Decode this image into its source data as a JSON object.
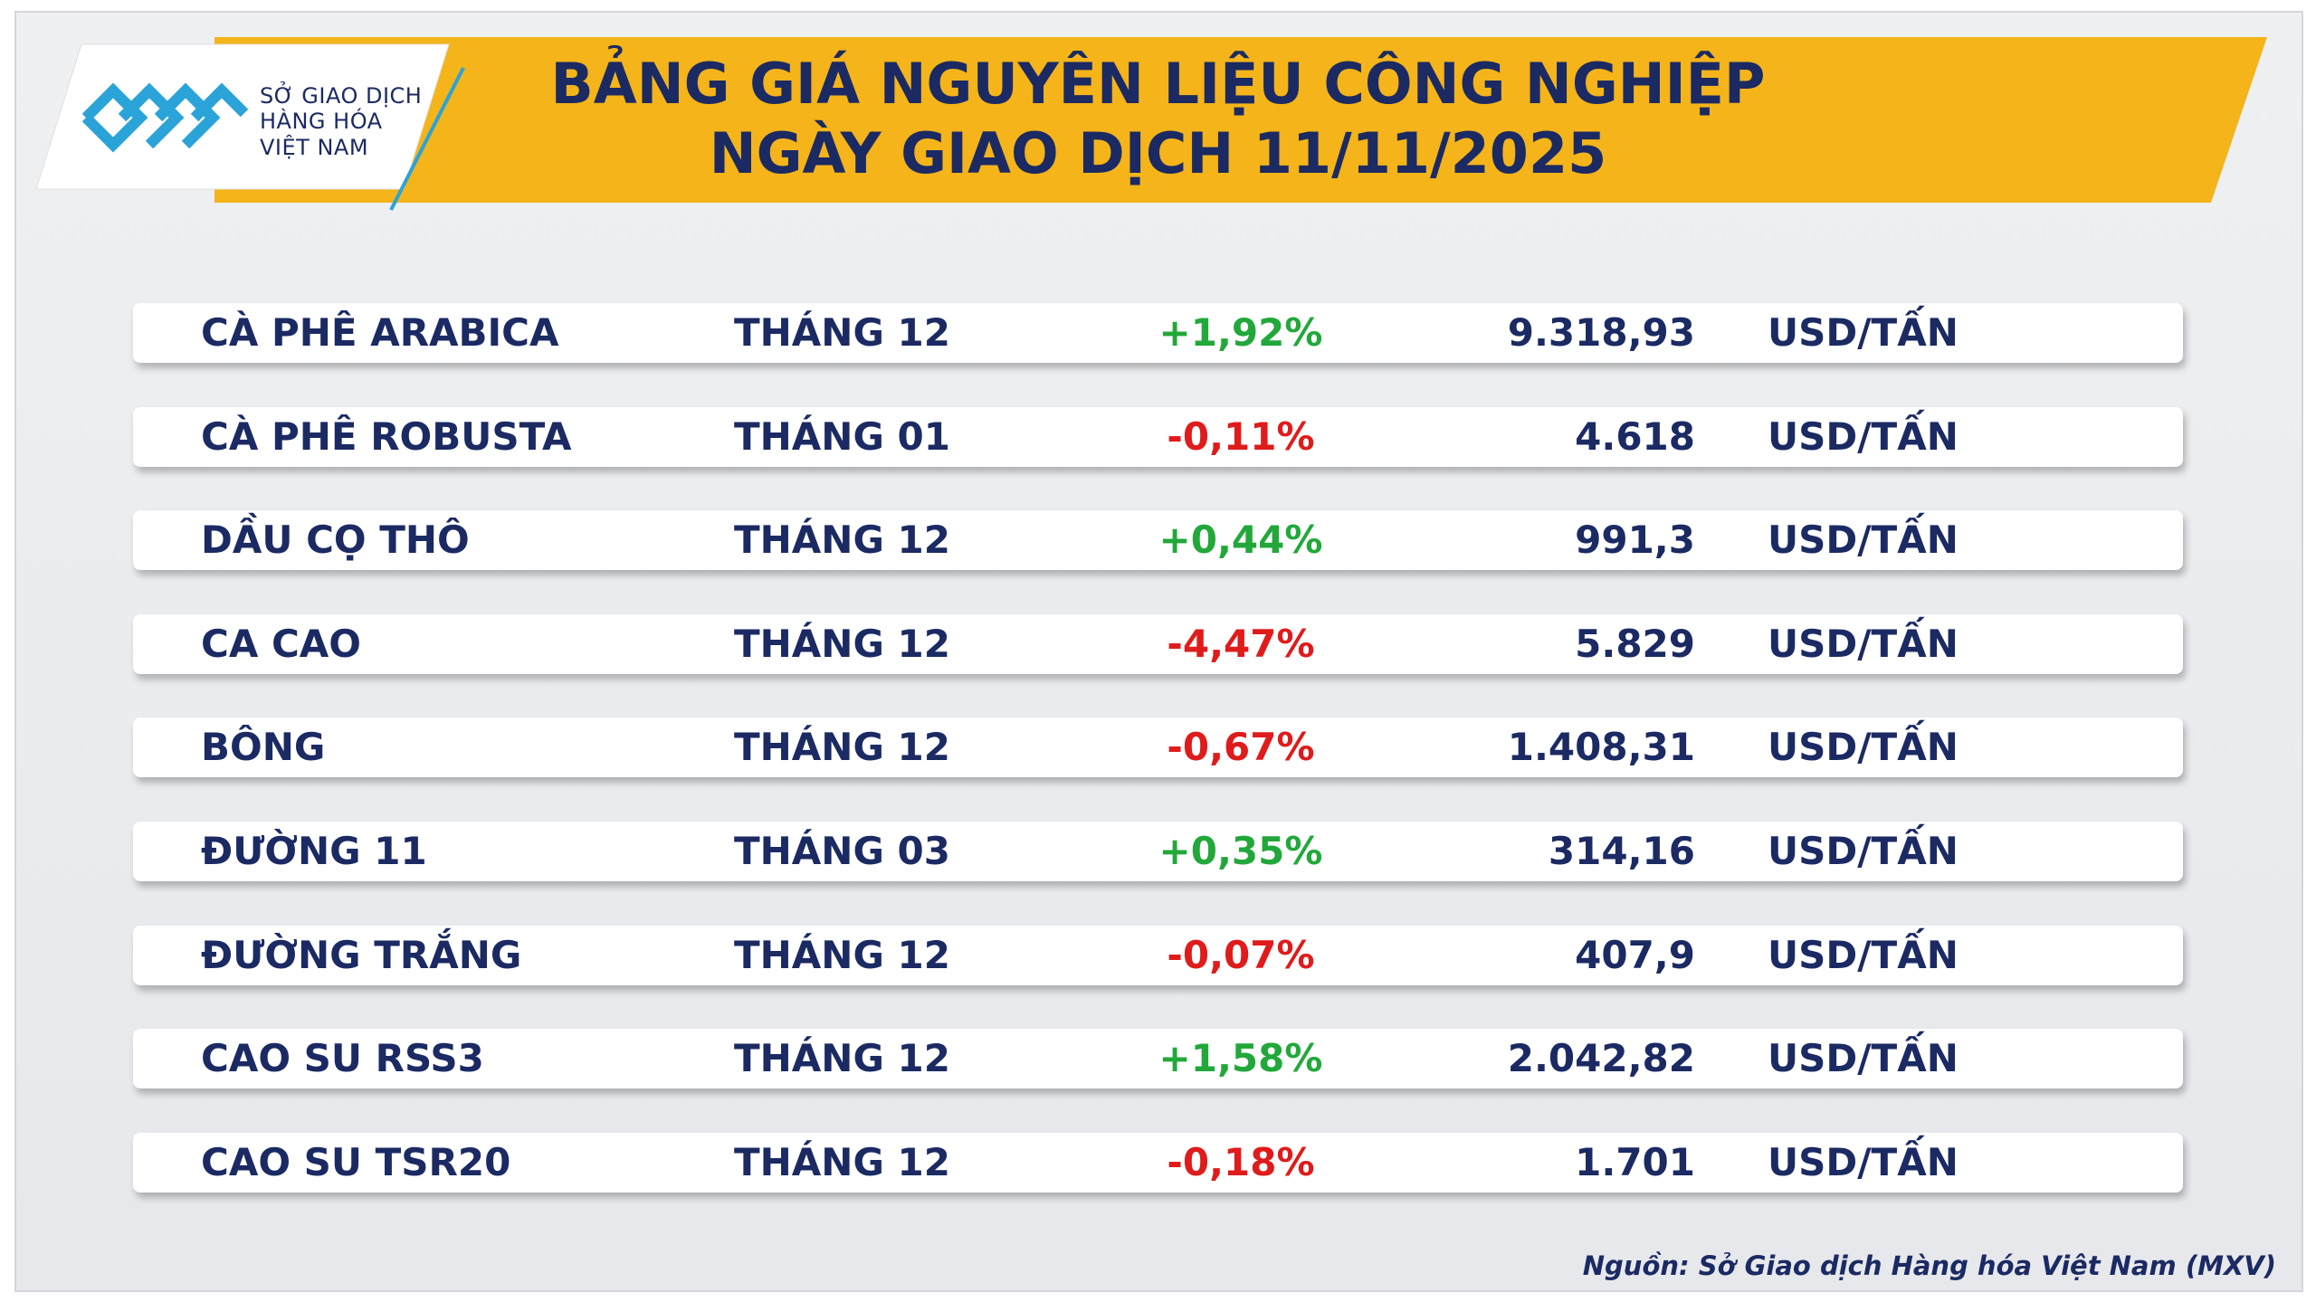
{
  "header": {
    "logo": {
      "lines": [
        "SỞ GIAO DỊCH",
        "HÀNG HÓA",
        "VIỆT NAM"
      ]
    },
    "title": [
      "BẢNG GIÁ NGUYÊN LIỆU CÔNG NGHIỆP",
      "NGÀY GIAO DỊCH 11/11/2025"
    ]
  },
  "table": {
    "rows": [
      [
        "CÀ PHÊ ARABICA",
        "THÁNG 12",
        "+1,92%",
        "9.318,93",
        "USD/TẤN"
      ],
      [
        "CÀ PHÊ ROBUSTA",
        "THÁNG 01",
        "-0,11%",
        "4.618",
        "USD/TẤN"
      ],
      [
        "DẦU CỌ THÔ",
        "THÁNG 12",
        "+0,44%",
        "991,3",
        "USD/TẤN"
      ],
      [
        "CA CAO",
        "THÁNG 12",
        "-4,47%",
        "5.829",
        "USD/TẤN"
      ],
      [
        "BÔNG",
        "THÁNG 12",
        "-0,67%",
        "1.408,31",
        "USD/TẤN"
      ],
      [
        "ĐƯỜNG 11",
        "THÁNG 03",
        "+0,35%",
        "314,16",
        "USD/TẤN"
      ],
      [
        "ĐƯỜNG TRẮNG",
        "THÁNG 12",
        "-0,07%",
        "407,9",
        "USD/TẤN"
      ],
      [
        "CAO SU RSS3",
        "THÁNG 12",
        "+1,58%",
        "2.042,82",
        "USD/TẤN"
      ],
      [
        "CAO SU TSR20",
        "THÁNG 12",
        "-0,18%",
        "1.701",
        "USD/TẤN"
      ]
    ]
  },
  "footer": {
    "source": "Nguồn: Sở Giao dịch Hàng hóa Việt Nam (MXV)"
  }
}
